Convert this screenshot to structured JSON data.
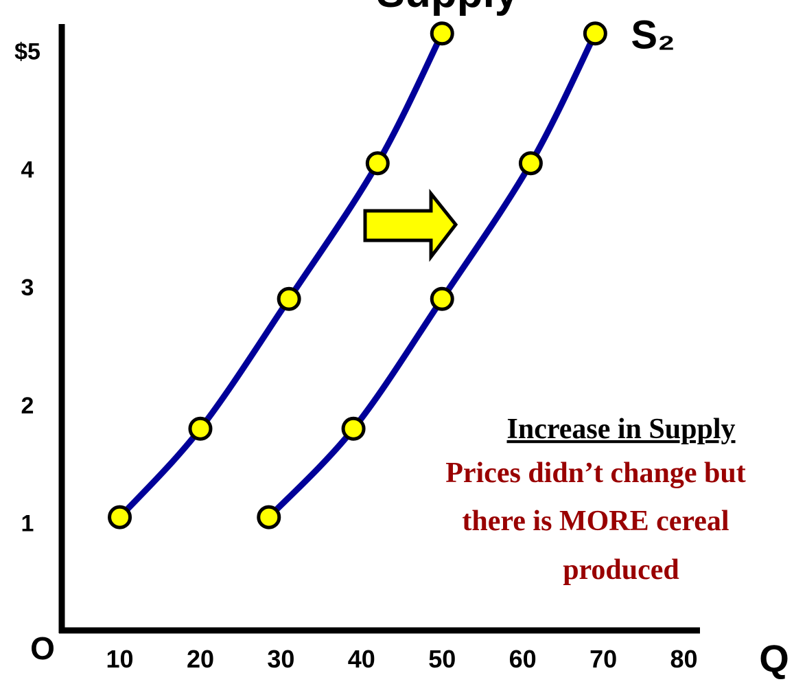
{
  "chart_data": {
    "type": "line",
    "title": "Supply",
    "x_label": "Q",
    "origin_label": "O",
    "xlim": [
      2.8,
      82
    ],
    "ylim": [
      0.09,
      5.23
    ],
    "xticks": [
      10,
      20,
      30,
      40,
      50,
      60,
      70,
      80
    ],
    "yticks": [
      1,
      2,
      3,
      4,
      {
        "value": 5,
        "label": "$5"
      }
    ],
    "grid": false,
    "series": [
      {
        "color": "#000099",
        "marker_color": "#ffff00",
        "x": [
          10,
          20,
          31,
          42,
          50
        ],
        "values": [
          1.05,
          1.8,
          2.9,
          4.05,
          5.15
        ]
      },
      {
        "name": "S₂",
        "color": "#000099",
        "marker_color": "#ffff00",
        "x": [
          28.5,
          39,
          50,
          61,
          69
        ],
        "values": [
          1.05,
          1.8,
          2.9,
          4.05,
          5.15
        ]
      }
    ],
    "annotation": {
      "heading": "Increase in Supply",
      "lines": [
        "Prices didn’t change but",
        "there is MORE cereal",
        "produced"
      ]
    }
  }
}
